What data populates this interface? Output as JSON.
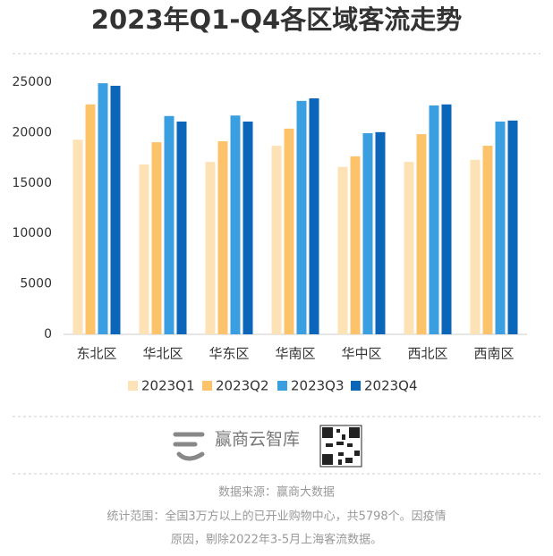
{
  "chart_data": {
    "type": "bar",
    "title": "2023年Q1-Q4各区域客流走势",
    "categories": [
      "东北区",
      "华北区",
      "华东区",
      "华南区",
      "华中区",
      "西北区",
      "西南区"
    ],
    "series": [
      {
        "name": "2023Q1",
        "color": "#fde2b6",
        "values": [
          19300,
          16850,
          17100,
          18700,
          16600,
          17100,
          17300
        ]
      },
      {
        "name": "2023Q2",
        "color": "#fcc36a",
        "values": [
          22800,
          19050,
          19150,
          20400,
          17650,
          19850,
          18700
        ]
      },
      {
        "name": "2023Q3",
        "color": "#3a9fe0",
        "values": [
          24900,
          21650,
          21700,
          23150,
          19950,
          22700,
          21100
        ]
      },
      {
        "name": "2023Q4",
        "color": "#0b65b8",
        "values": [
          24650,
          21100,
          21100,
          23400,
          20050,
          22800,
          21200
        ]
      }
    ],
    "ylim": [
      0,
      25000
    ],
    "yticks": [
      0,
      5000,
      10000,
      15000,
      20000,
      25000
    ],
    "grid": false,
    "legend": "bottom"
  },
  "footer": {
    "brand": "赢商云智库",
    "source": "数据来源：赢商大数据",
    "notes": [
      "统计范围：全国3万方以上的已开业购物中心，共5798个。因疫情",
      "原因，剔除2022年3-5月上海客流数据。"
    ]
  }
}
